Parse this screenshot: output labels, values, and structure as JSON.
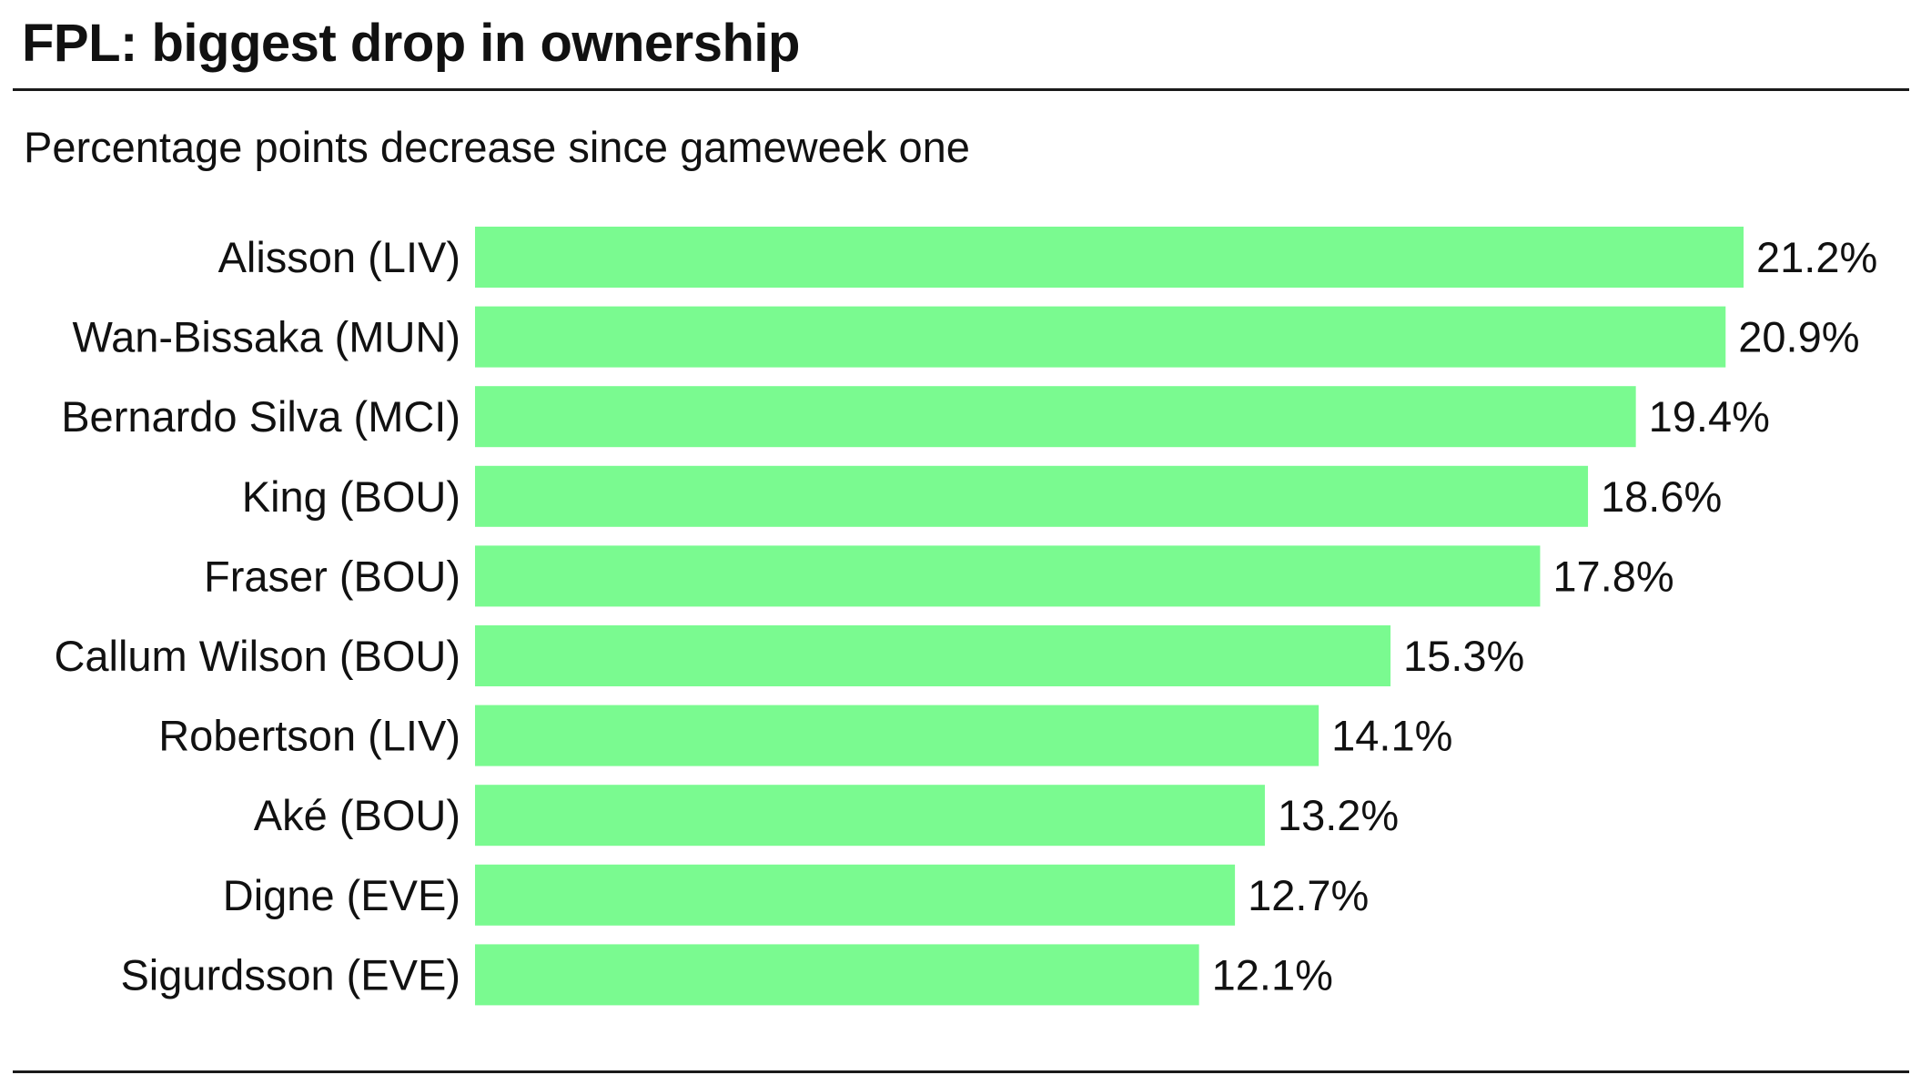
{
  "title": "FPL: biggest drop in ownership",
  "subtitle": "Percentage points decrease since gameweek one",
  "colors": {
    "bar": "#7afa90",
    "text": "#111111",
    "rule": "#1a1a1a"
  },
  "chart_data": {
    "type": "bar",
    "orientation": "horizontal",
    "title": "FPL: biggest drop in ownership",
    "subtitle": "Percentage points decrease since gameweek one",
    "categories": [
      "Alisson (LIV)",
      "Wan-Bissaka (MUN)",
      "Bernardo Silva (MCI)",
      "King (BOU)",
      "Fraser (BOU)",
      "Callum Wilson (BOU)",
      "Robertson (LIV)",
      "Aké (BOU)",
      "Digne (EVE)",
      "Sigurdsson (EVE)"
    ],
    "values": [
      21.2,
      20.9,
      19.4,
      18.6,
      17.8,
      15.3,
      14.1,
      13.2,
      12.7,
      12.1
    ],
    "value_labels": [
      "21.2%",
      "20.9%",
      "19.4%",
      "18.6%",
      "17.8%",
      "15.3%",
      "14.1%",
      "13.2%",
      "12.7%",
      "12.1%"
    ],
    "xlim": [
      0,
      21.2
    ],
    "grid": false,
    "legend": false
  }
}
